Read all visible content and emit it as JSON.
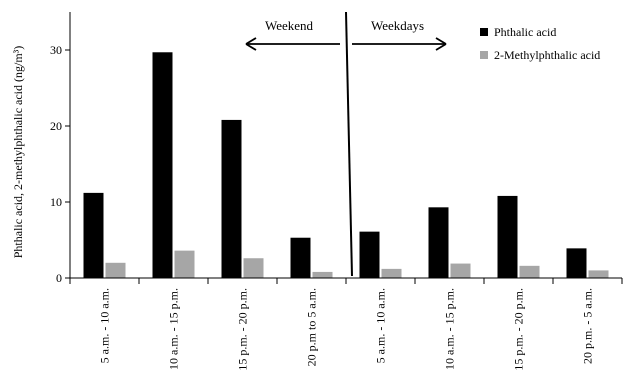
{
  "chart_data": {
    "type": "bar",
    "title": "",
    "ylabel": "Phthalic acid, 2-methylphthalic acid (ng/m³)",
    "xlabel": "",
    "ylim": [
      0,
      35
    ],
    "yticks": [
      0,
      10,
      20,
      30
    ],
    "categories": [
      "5 a.m. - 10 a.m.",
      "10 a.m. - 15 p.m.",
      "15 p.m. - 20 p.m.",
      "20 p.m to 5 a.m.",
      "5 a.m. - 10 a.m.",
      "10 a.m. - 15 p.m.",
      "15 p.m. - 20 p.m.",
      "20 p.m. - 5 a.m."
    ],
    "series": [
      {
        "name": "Phthalic acid",
        "color": "#000000",
        "values": [
          11.2,
          29.7,
          20.8,
          5.3,
          6.1,
          9.3,
          10.8,
          3.9
        ]
      },
      {
        "name": "2-Methylphthalic acid",
        "color": "#a6a6a6",
        "values": [
          2.0,
          3.6,
          2.6,
          0.8,
          1.2,
          1.9,
          1.6,
          1.0
        ]
      }
    ],
    "legend_position": "top-right",
    "grid": false,
    "annotations": {
      "weekend": "Weekend",
      "weekdays": "Weekdays"
    }
  }
}
